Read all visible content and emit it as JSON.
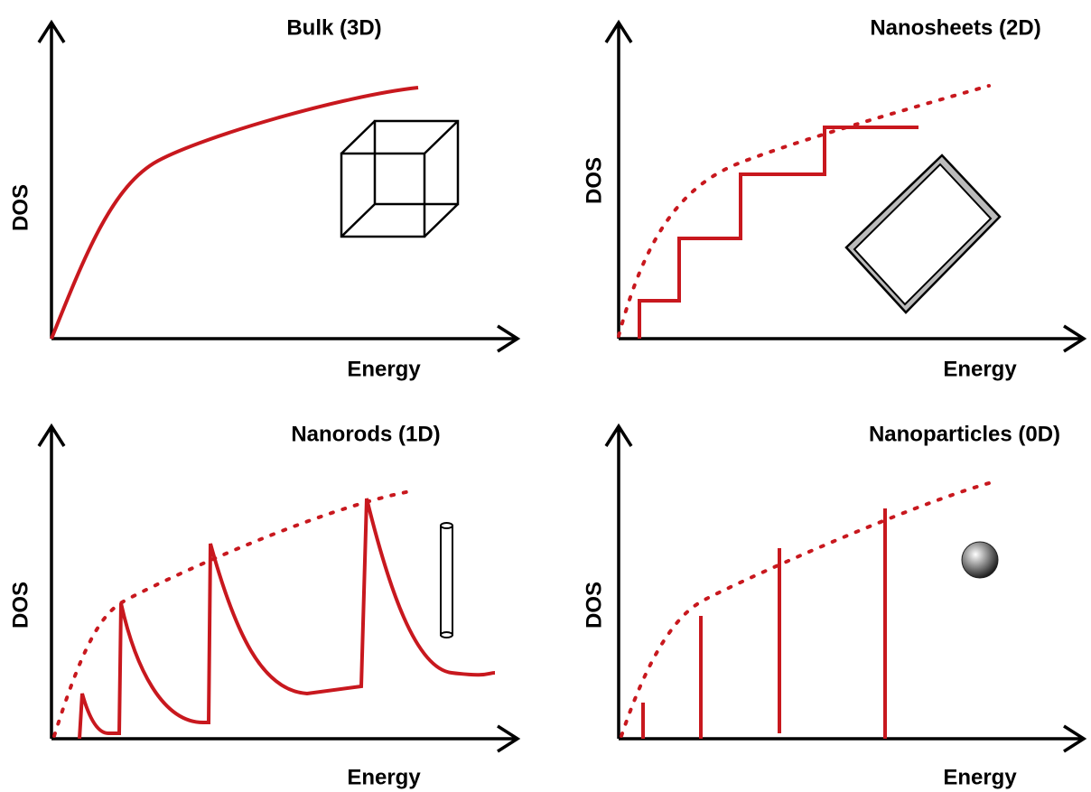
{
  "panels": [
    {
      "title": "Bulk (3D)",
      "x_label": "Energy",
      "y_label": "DOS"
    },
    {
      "title": "Nanosheets (2D)",
      "x_label": "Energy",
      "y_label": "DOS"
    },
    {
      "title": "Nanorods (1D)",
      "x_label": "Energy",
      "y_label": "DOS"
    },
    {
      "title": "Nanoparticles (0D)",
      "x_label": "Energy",
      "y_label": "DOS"
    }
  ]
}
